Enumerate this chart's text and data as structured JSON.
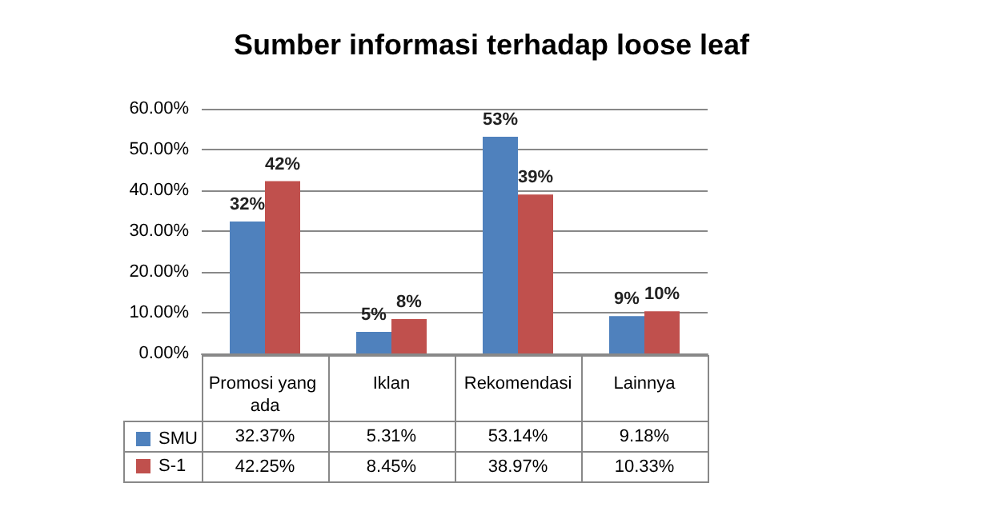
{
  "chart_data": {
    "type": "bar",
    "title": "Sumber informasi terhadap loose leaf",
    "categories": [
      "Promosi yang ada",
      "Iklan",
      "Rekomendasi",
      "Lainnya"
    ],
    "series": [
      {
        "name": "SMU",
        "color": "#4f81bd",
        "values": [
          32.37,
          5.31,
          53.14,
          9.18
        ],
        "value_labels": [
          "32%",
          "5%",
          "53%",
          "9%"
        ]
      },
      {
        "name": "S-1",
        "color": "#c0504d",
        "values": [
          42.25,
          8.45,
          38.97,
          10.33
        ],
        "value_labels": [
          "42%",
          "8%",
          "39%",
          "10%"
        ]
      }
    ],
    "ylim": [
      0,
      60
    ],
    "yticks": [
      {
        "value": 0,
        "label": "0.00%"
      },
      {
        "value": 10,
        "label": "10.00%"
      },
      {
        "value": 20,
        "label": "20.00%"
      },
      {
        "value": 30,
        "label": "30.00%"
      },
      {
        "value": 40,
        "label": "40.00%"
      },
      {
        "value": 50,
        "label": "50.00%"
      },
      {
        "value": 60,
        "label": "60.00%"
      }
    ],
    "grid": "y",
    "legend": "bottom",
    "annotations": [
      "32.37%",
      "5.31%",
      "53.14%",
      "9.18%",
      "42.25%",
      "8.45%",
      "38.97%",
      "10.33%"
    ]
  }
}
